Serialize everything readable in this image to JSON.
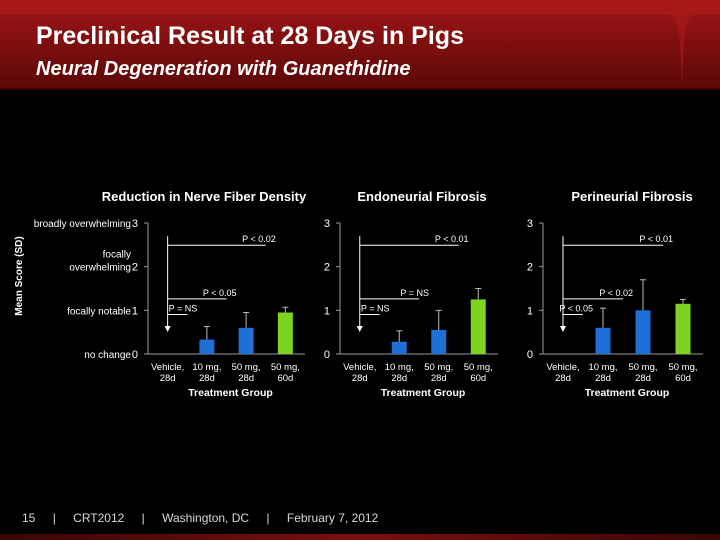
{
  "slide": {
    "title": "Preclinical Result at 28 Days in Pigs",
    "subtitle": "Neural Degeneration with Guanethidine"
  },
  "footer": {
    "page": "15",
    "sep": "|",
    "event": "CRT2012",
    "location": "Washington, DC",
    "date": "February 7, 2012"
  },
  "shared": {
    "ylabel": "Mean Score (SD)",
    "xlabel": "Treatment Group",
    "y_category_labels": [
      {
        "value": 3,
        "text": "broadly overwhelming"
      },
      {
        "value": 2,
        "text": "focally overwhelming"
      },
      {
        "value": 1,
        "text": "focally notable"
      },
      {
        "value": 0,
        "text": "no change"
      }
    ],
    "colors": {
      "blue": "#1e6fd6",
      "green": "#7ed321",
      "axis": "#9a9a9a",
      "text": "#ffffff"
    }
  },
  "chart_data": [
    {
      "type": "bar",
      "title": "Reduction in Nerve Fiber Density",
      "xlabel": "Treatment Group",
      "ylim": [
        0,
        3
      ],
      "categories": [
        [
          "Vehicle,",
          "28d"
        ],
        [
          "10 mg,",
          "28d"
        ],
        [
          "50 mg,",
          "28d"
        ],
        [
          "50 mg,",
          "60d"
        ]
      ],
      "values": [
        0,
        0.33,
        0.6,
        0.95
      ],
      "errors": [
        0,
        0.3,
        0.35,
        0.12
      ],
      "bar_colors": [
        "#1e6fd6",
        "#1e6fd6",
        "#1e6fd6",
        "#7ed321"
      ],
      "annotations": [
        {
          "text": "P < 0.02",
          "to": 3
        },
        {
          "text": "P < 0.05",
          "to": 2
        },
        {
          "text": "P = NS",
          "to": 1
        }
      ]
    },
    {
      "type": "bar",
      "title": "Endoneurial Fibrosis",
      "xlabel": "Treatment Group",
      "ylim": [
        0,
        3
      ],
      "categories": [
        [
          "Vehicle,",
          "28d"
        ],
        [
          "10 mg,",
          "28d"
        ],
        [
          "50 mg,",
          "28d"
        ],
        [
          "50 mg,",
          "60d"
        ]
      ],
      "values": [
        0,
        0.28,
        0.55,
        1.25
      ],
      "errors": [
        0,
        0.25,
        0.45,
        0.25
      ],
      "bar_colors": [
        "#1e6fd6",
        "#1e6fd6",
        "#1e6fd6",
        "#7ed321"
      ],
      "annotations": [
        {
          "text": "P < 0.01",
          "to": 3
        },
        {
          "text": "P = NS",
          "to": 2
        },
        {
          "text": "P = NS",
          "to": 1
        }
      ]
    },
    {
      "type": "bar",
      "title": "Perineurial Fibrosis",
      "xlabel": "Treatment Group",
      "ylim": [
        0,
        3
      ],
      "categories": [
        [
          "Vehicle,",
          "28d"
        ],
        [
          "10 mg,",
          "28d"
        ],
        [
          "50 mg,",
          "28d"
        ],
        [
          "50 mg,",
          "60d"
        ]
      ],
      "values": [
        0,
        0.6,
        1.0,
        1.15
      ],
      "errors": [
        0,
        0.45,
        0.7,
        0.1
      ],
      "bar_colors": [
        "#1e6fd6",
        "#1e6fd6",
        "#1e6fd6",
        "#7ed321"
      ],
      "annotations": [
        {
          "text": "P < 0.01",
          "to": 3
        },
        {
          "text": "P < 0.02",
          "to": 2
        },
        {
          "text": "P < 0.05",
          "to": 1
        }
      ]
    }
  ]
}
